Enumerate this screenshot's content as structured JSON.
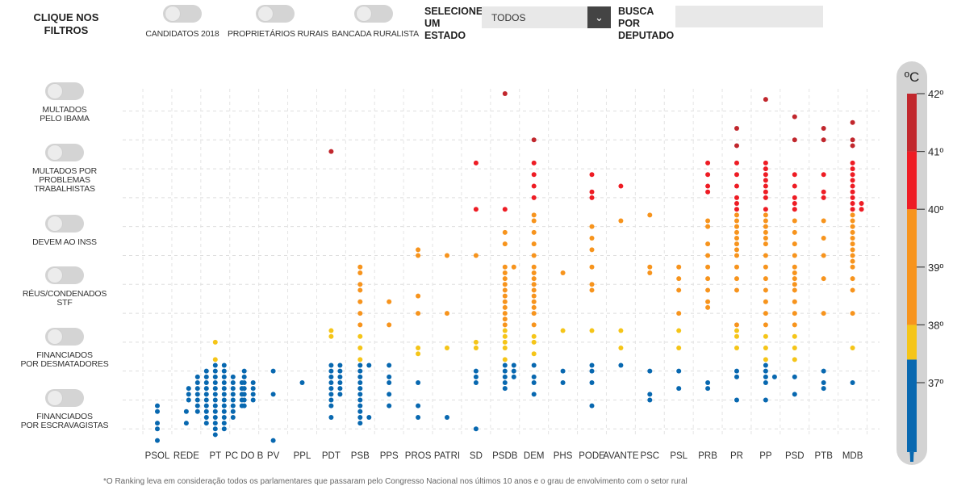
{
  "filters": {
    "title": "CLIQUE NOS FILTROS",
    "top": [
      {
        "label": "CANDIDATOS 2018",
        "on": false
      },
      {
        "label": "PROPRIETÁRIOS RURAIS",
        "on": false
      },
      {
        "label": "BANCADA RURALISTA",
        "on": false
      }
    ],
    "left": [
      {
        "label": "MULTADOS\nPELO IBAMA",
        "on": false
      },
      {
        "label": "MULTADOS POR\nPROBLEMAS\nTRABALHISTAS",
        "on": false
      },
      {
        "label": "DEVEM AO INSS",
        "on": false
      },
      {
        "label": "RÉUS/CONDENADOS\nSTF",
        "on": false
      },
      {
        "label": "FINANCIADOS\nPOR DESMATADORES",
        "on": false
      },
      {
        "label": "FINANCIADOS\nPOR ESCRAVAGISTAS",
        "on": false
      }
    ],
    "state_label": "SELECIONE UM ESTADO",
    "state_value": "TODOS",
    "search_label": "BUSCA POR DEPUTADO",
    "search_value": ""
  },
  "thermometer": {
    "unit": "ºC",
    "ticks": [
      "42º",
      "41º",
      "40º",
      "39º",
      "38º",
      "37º"
    ],
    "bands": [
      {
        "from": 35.8,
        "to": 37.4,
        "color": "#0868b0"
      },
      {
        "from": 37.4,
        "to": 38.0,
        "color": "#f5c518"
      },
      {
        "from": 38.0,
        "to": 40.0,
        "color": "#f7941d"
      },
      {
        "from": 40.0,
        "to": 41.0,
        "color": "#ee1c24"
      },
      {
        "from": 41.0,
        "to": 42.0,
        "color": "#c1272d"
      }
    ]
  },
  "colors": {
    "blue": "#0868b0",
    "yellow": "#f5c518",
    "orange": "#f7941d",
    "red": "#ee1c24",
    "darkred": "#c1272d"
  },
  "chart_data": {
    "type": "scatter",
    "title": "",
    "xlabel": "",
    "ylabel": "ºC",
    "ylim": [
      35.8,
      42.2
    ],
    "grid": true,
    "categories": [
      "PSOL",
      "REDE",
      "PT",
      "PC DO B",
      "PV",
      "PPL",
      "PDT",
      "PSB",
      "PPS",
      "PROS",
      "PATRI",
      "SD",
      "PSDB",
      "DEM",
      "PHS",
      "PODE",
      "AVANTE",
      "PSC",
      "PSL",
      "PRB",
      "PR",
      "PP",
      "PSD",
      "PTB",
      "MDB"
    ],
    "series": [
      {
        "values": [
          [
            36.0,
            36.2,
            36.3,
            36.5,
            36.6
          ]
        ]
      },
      {
        "values": [
          [
            36.3,
            36.5
          ]
        ]
      },
      {
        "values": [
          [
            36.1,
            36.2,
            36.2,
            36.3,
            36.3,
            36.3,
            36.4,
            36.4,
            36.4,
            36.4,
            36.5,
            36.5,
            36.5,
            36.5,
            36.5,
            36.6,
            36.6,
            36.6,
            36.6,
            36.6,
            36.6,
            36.7,
            36.7,
            36.7,
            36.7,
            36.7,
            36.7,
            36.7,
            36.8,
            36.8,
            36.8,
            36.8,
            36.8,
            36.8,
            36.8,
            36.9,
            36.9,
            36.9,
            36.9,
            36.9,
            36.9,
            36.9,
            37.0,
            37.0,
            37.0,
            37.0,
            37.0,
            37.0,
            37.1,
            37.1,
            37.1,
            37.1,
            37.1,
            37.2,
            37.2,
            37.2,
            37.3,
            37.3,
            37.4,
            37.7
          ]
        ]
      },
      {
        "values": [
          [
            36.6,
            36.7,
            36.7,
            36.8,
            36.8,
            36.9,
            36.9,
            37.0,
            37.0,
            37.1,
            37.2
          ]
        ]
      },
      {
        "values": [
          [
            36.0,
            36.8,
            37.2
          ]
        ]
      },
      {
        "values": [
          [
            37.0
          ]
        ]
      },
      {
        "values": [
          [
            36.4,
            36.6,
            36.7,
            36.8,
            36.8,
            36.9,
            36.9,
            37.0,
            37.0,
            37.1,
            37.1,
            37.2,
            37.2,
            37.3,
            37.3,
            37.8,
            37.9,
            41.0
          ]
        ]
      },
      {
        "values": [
          [
            36.3,
            36.4,
            36.4,
            36.5,
            36.6,
            36.7,
            36.8,
            36.9,
            37.0,
            37.1,
            37.2,
            37.3,
            37.3,
            37.4,
            37.6,
            37.8,
            38.0,
            38.2,
            38.4,
            38.6,
            38.7,
            38.9,
            39.0
          ]
        ]
      },
      {
        "values": [
          [
            36.6,
            36.8,
            37.0,
            37.1,
            37.3,
            38.0,
            38.4
          ]
        ]
      },
      {
        "values": [
          [
            36.4,
            36.6,
            37.0,
            37.5,
            37.6,
            38.2,
            38.5,
            39.2,
            39.3
          ]
        ]
      },
      {
        "values": [
          [
            36.4,
            37.6,
            38.2,
            39.2
          ]
        ]
      },
      {
        "values": [
          [
            36.2,
            37.0,
            37.1,
            37.2,
            37.6,
            37.7,
            39.2,
            40.0,
            40.8
          ]
        ]
      },
      {
        "values": [
          [
            36.9,
            37.0,
            37.1,
            37.1,
            37.2,
            37.2,
            37.3,
            37.3,
            37.4,
            37.6,
            37.7,
            37.8,
            37.9,
            38.0,
            38.1,
            38.2,
            38.3,
            38.4,
            38.5,
            38.6,
            38.7,
            38.8,
            38.9,
            39.0,
            39.0,
            39.4,
            39.6,
            40.0,
            42.0
          ]
        ]
      },
      {
        "values": [
          [
            36.8,
            37.0,
            37.1,
            37.3,
            37.5,
            37.7,
            37.8,
            38.0,
            38.2,
            38.3,
            38.4,
            38.5,
            38.6,
            38.7,
            38.8,
            38.9,
            39.0,
            39.2,
            39.4,
            39.6,
            39.8,
            39.9,
            40.2,
            40.4,
            40.6,
            40.8,
            41.2
          ]
        ]
      },
      {
        "values": [
          [
            37.0,
            37.2,
            37.9,
            38.9
          ]
        ]
      },
      {
        "values": [
          [
            36.6,
            37.0,
            37.2,
            37.3,
            37.9,
            38.6,
            38.7,
            39.0,
            39.3,
            39.5,
            39.7,
            40.2,
            40.3,
            40.6
          ]
        ]
      },
      {
        "values": [
          [
            37.3,
            37.6,
            37.9,
            39.8,
            40.4
          ]
        ]
      },
      {
        "values": [
          [
            36.7,
            36.8,
            37.2,
            38.9,
            39.0,
            39.9
          ]
        ]
      },
      {
        "values": [
          [
            36.9,
            37.2,
            37.6,
            37.9,
            38.2,
            38.6,
            38.8,
            39.0
          ]
        ]
      },
      {
        "values": [
          [
            36.9,
            37.0,
            38.3,
            38.4,
            38.6,
            38.8,
            39.0,
            39.2,
            39.4,
            39.7,
            39.8,
            40.3,
            40.4,
            40.6,
            40.8
          ]
        ]
      },
      {
        "values": [
          [
            36.7,
            37.1,
            37.2,
            37.6,
            37.8,
            37.9,
            38.0,
            38.6,
            38.8,
            39.0,
            39.2,
            39.3,
            39.4,
            39.5,
            39.6,
            39.7,
            39.8,
            39.9,
            40.0,
            40.1,
            40.2,
            40.4,
            40.6,
            40.8,
            41.1,
            41.4
          ]
        ]
      },
      {
        "values": [
          [
            36.7,
            37.0,
            37.1,
            37.1,
            37.2,
            37.3,
            37.4,
            37.6,
            37.8,
            38.0,
            38.2,
            38.4,
            38.6,
            38.8,
            39.0,
            39.2,
            39.4,
            39.5,
            39.6,
            39.7,
            39.8,
            39.9,
            40.0,
            40.2,
            40.3,
            40.4,
            40.5,
            40.6,
            40.7,
            40.8,
            41.9
          ]
        ]
      },
      {
        "values": [
          [
            36.8,
            37.1,
            37.4,
            37.6,
            37.8,
            38.0,
            38.2,
            38.4,
            38.6,
            38.7,
            38.8,
            38.9,
            39.0,
            39.2,
            39.4,
            39.6,
            39.8,
            40.0,
            40.1,
            40.2,
            40.4,
            40.6,
            41.2,
            41.6
          ]
        ]
      },
      {
        "values": [
          [
            36.9,
            37.0,
            37.2,
            38.2,
            38.8,
            39.2,
            39.5,
            39.8,
            40.2,
            40.3,
            40.6,
            41.2,
            41.4
          ]
        ]
      },
      {
        "values": [
          [
            37.0,
            37.6,
            38.2,
            38.6,
            38.8,
            39.0,
            39.1,
            39.2,
            39.3,
            39.4,
            39.5,
            39.6,
            39.7,
            39.8,
            39.9,
            40.0,
            40.0,
            40.1,
            40.1,
            40.2,
            40.3,
            40.4,
            40.5,
            40.6,
            40.7,
            40.8,
            41.1,
            41.2,
            41.5
          ]
        ]
      }
    ]
  },
  "footnote": "*O Ranking leva em consideração todos os parlamentares que passaram pelo Congresso Nacional nos últimos 10 anos e o grau de envolvimento com o setor rural"
}
